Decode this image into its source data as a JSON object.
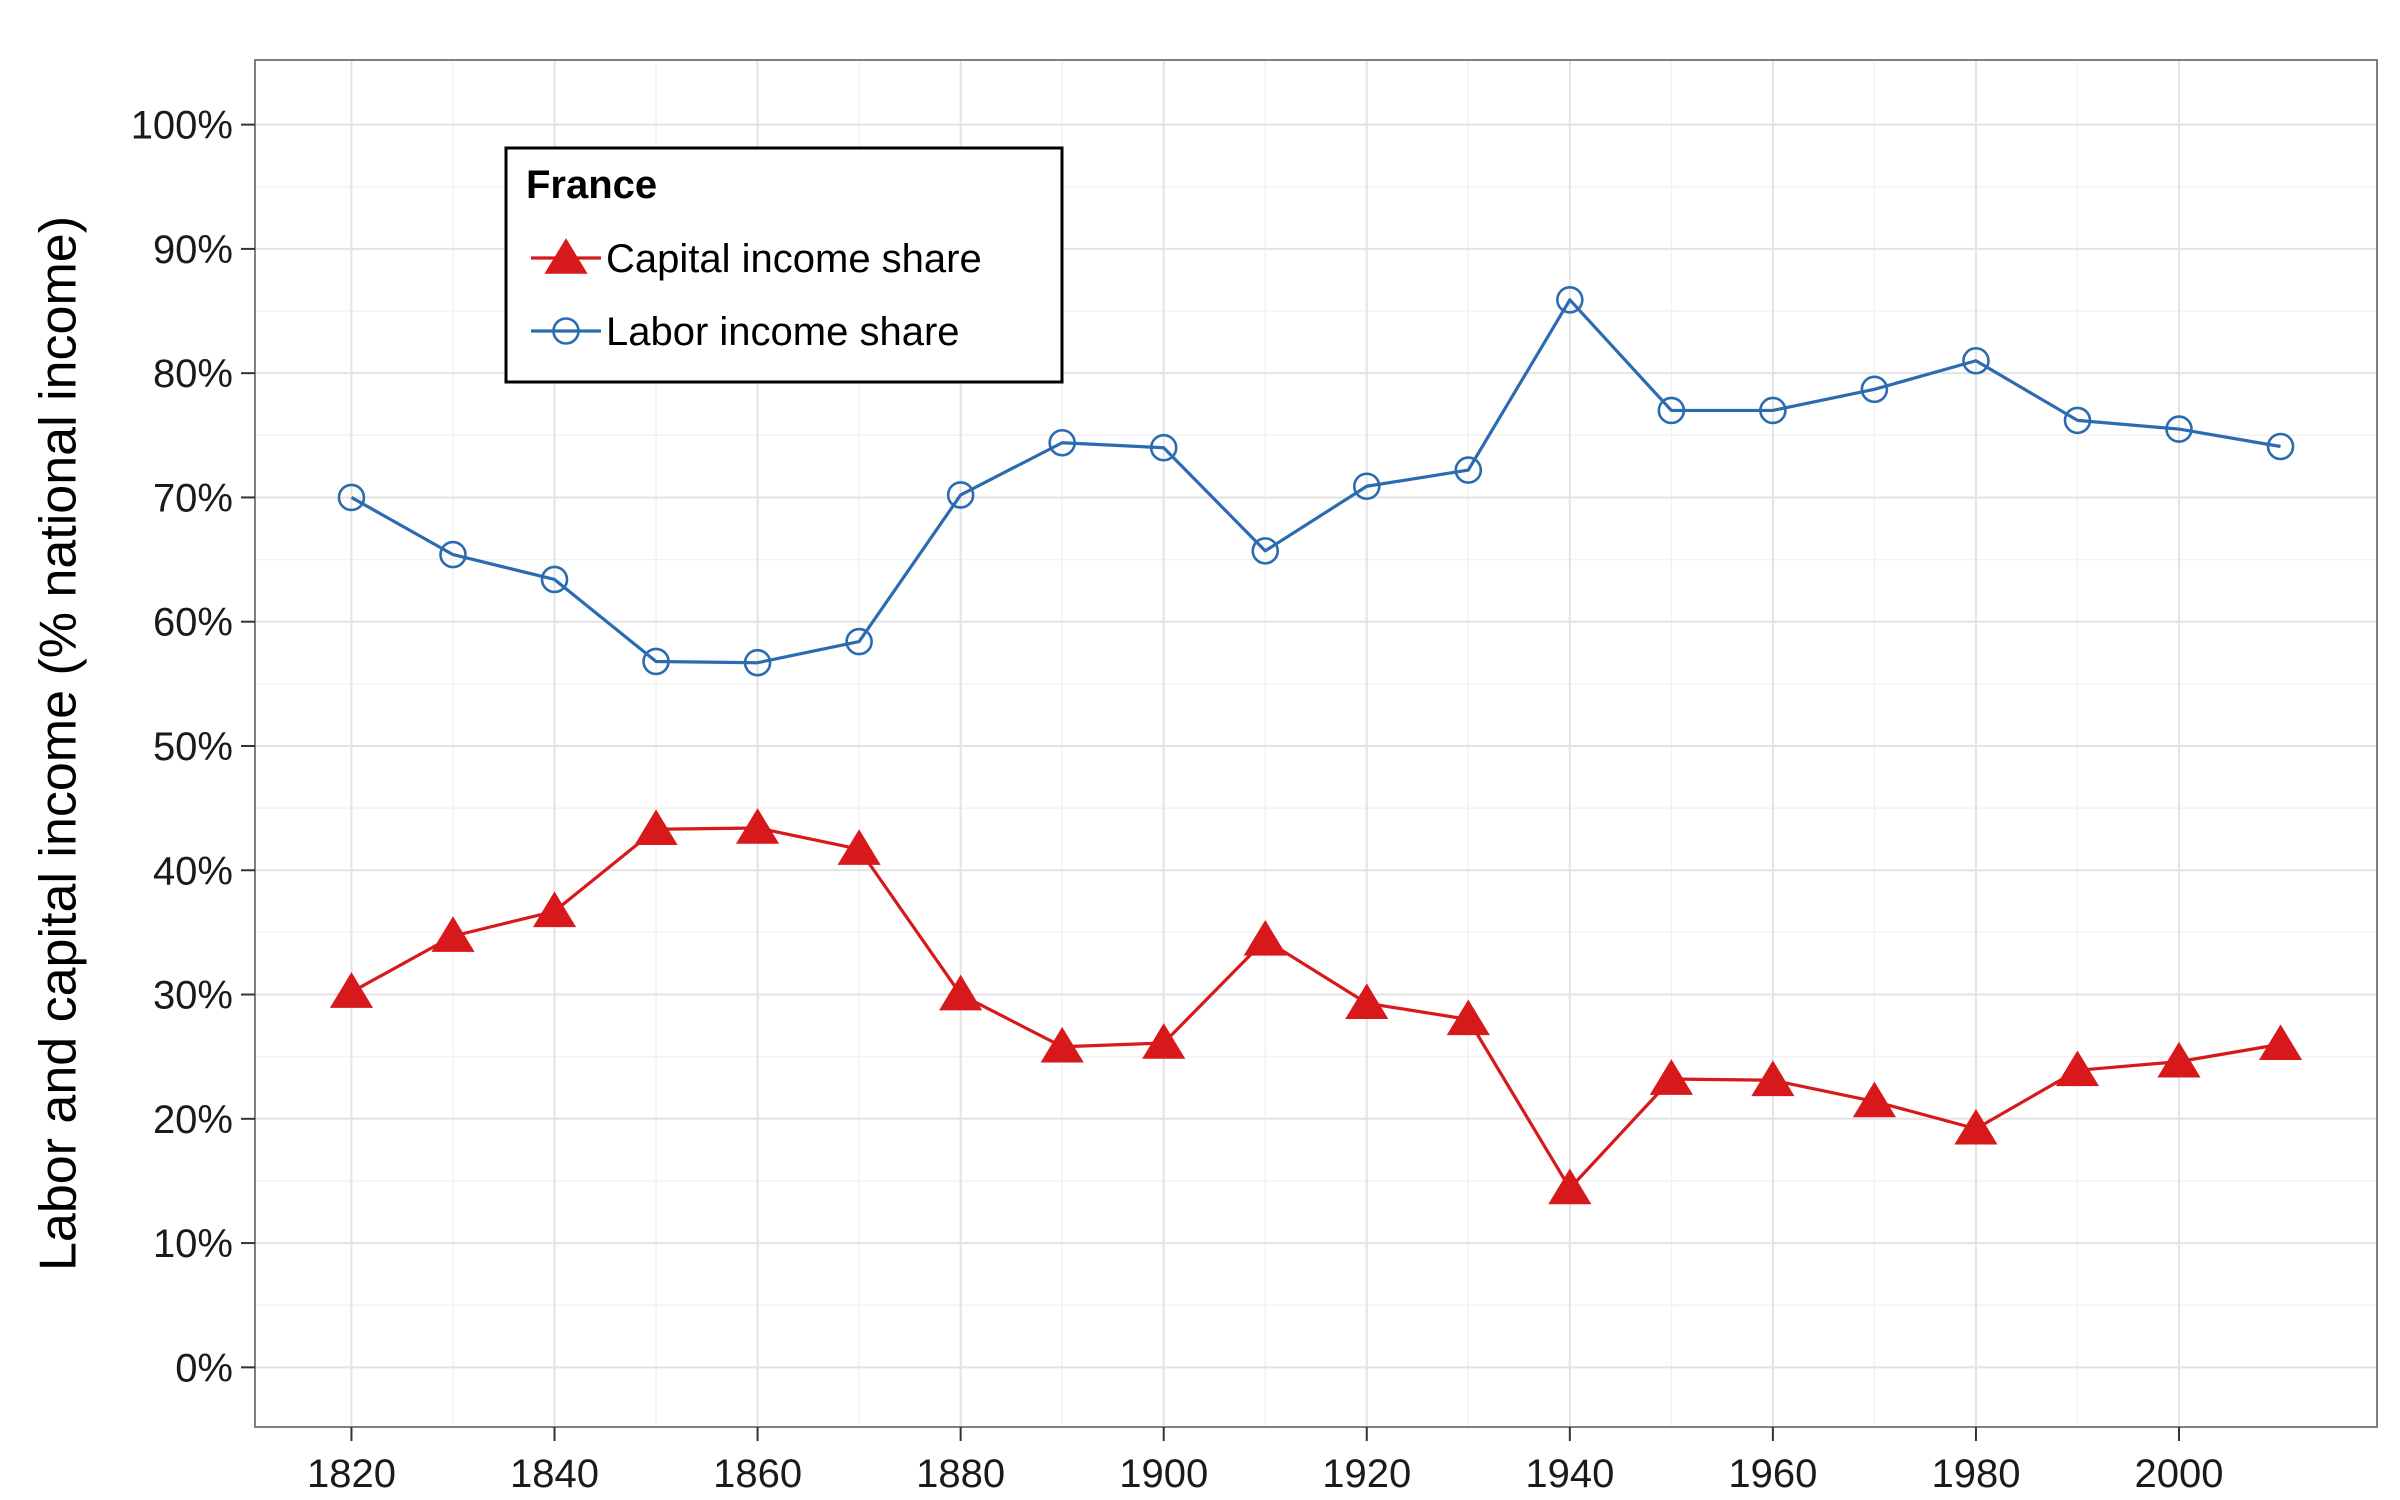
{
  "chart_data": {
    "type": "line",
    "title": "",
    "xlabel": "",
    "ylabel": "Labor and capital income (% national income)",
    "x": [
      1820,
      1830,
      1840,
      1850,
      1860,
      1870,
      1880,
      1890,
      1900,
      1910,
      1920,
      1930,
      1940,
      1950,
      1960,
      1970,
      1980,
      1990,
      2000,
      2010
    ],
    "series": [
      {
        "name": "Capital income share",
        "marker": "filled-triangle",
        "color": "#d7191c",
        "values": [
          30.2,
          34.7,
          36.7,
          43.3,
          43.4,
          41.7,
          30.0,
          25.8,
          26.1,
          34.4,
          29.3,
          28.0,
          14.4,
          23.2,
          23.1,
          21.4,
          19.2,
          23.9,
          24.6,
          26.0
        ]
      },
      {
        "name": "Labor income share",
        "marker": "open-circle",
        "color": "#2b6cb0",
        "values": [
          70.0,
          65.4,
          63.4,
          56.8,
          56.7,
          58.4,
          70.2,
          74.4,
          74.0,
          65.7,
          70.9,
          72.2,
          85.9,
          77.0,
          77.0,
          78.7,
          81.0,
          76.2,
          75.5,
          74.1
        ]
      }
    ],
    "xticks": [
      1820,
      1840,
      1860,
      1880,
      1900,
      1920,
      1940,
      1960,
      1980,
      2000
    ],
    "xtick_labels": [
      "1820",
      "1840",
      "1860",
      "1880",
      "1900",
      "1920",
      "1940",
      "1960",
      "1980",
      "2000"
    ],
    "yticks": [
      0,
      10,
      20,
      30,
      40,
      50,
      60,
      70,
      80,
      90,
      100
    ],
    "ytick_labels": [
      "0%",
      "10%",
      "20%",
      "30%",
      "40%",
      "50%",
      "60%",
      "70%",
      "80%",
      "90%",
      "100%"
    ],
    "xlim": [
      1810.5,
      2019.5
    ],
    "ylim": [
      -4.8,
      105.2
    ],
    "grid": true,
    "legend": {
      "title": "France",
      "placement": "top-left",
      "entries": [
        "Capital income share",
        "Labor income share"
      ]
    },
    "colors": {
      "capital": "#d7191c",
      "labor": "#2b6cb0",
      "grid_major": "#e3e3e3",
      "grid_minor": "#f2f2f2",
      "panel_border": "#7f7f7f"
    }
  }
}
